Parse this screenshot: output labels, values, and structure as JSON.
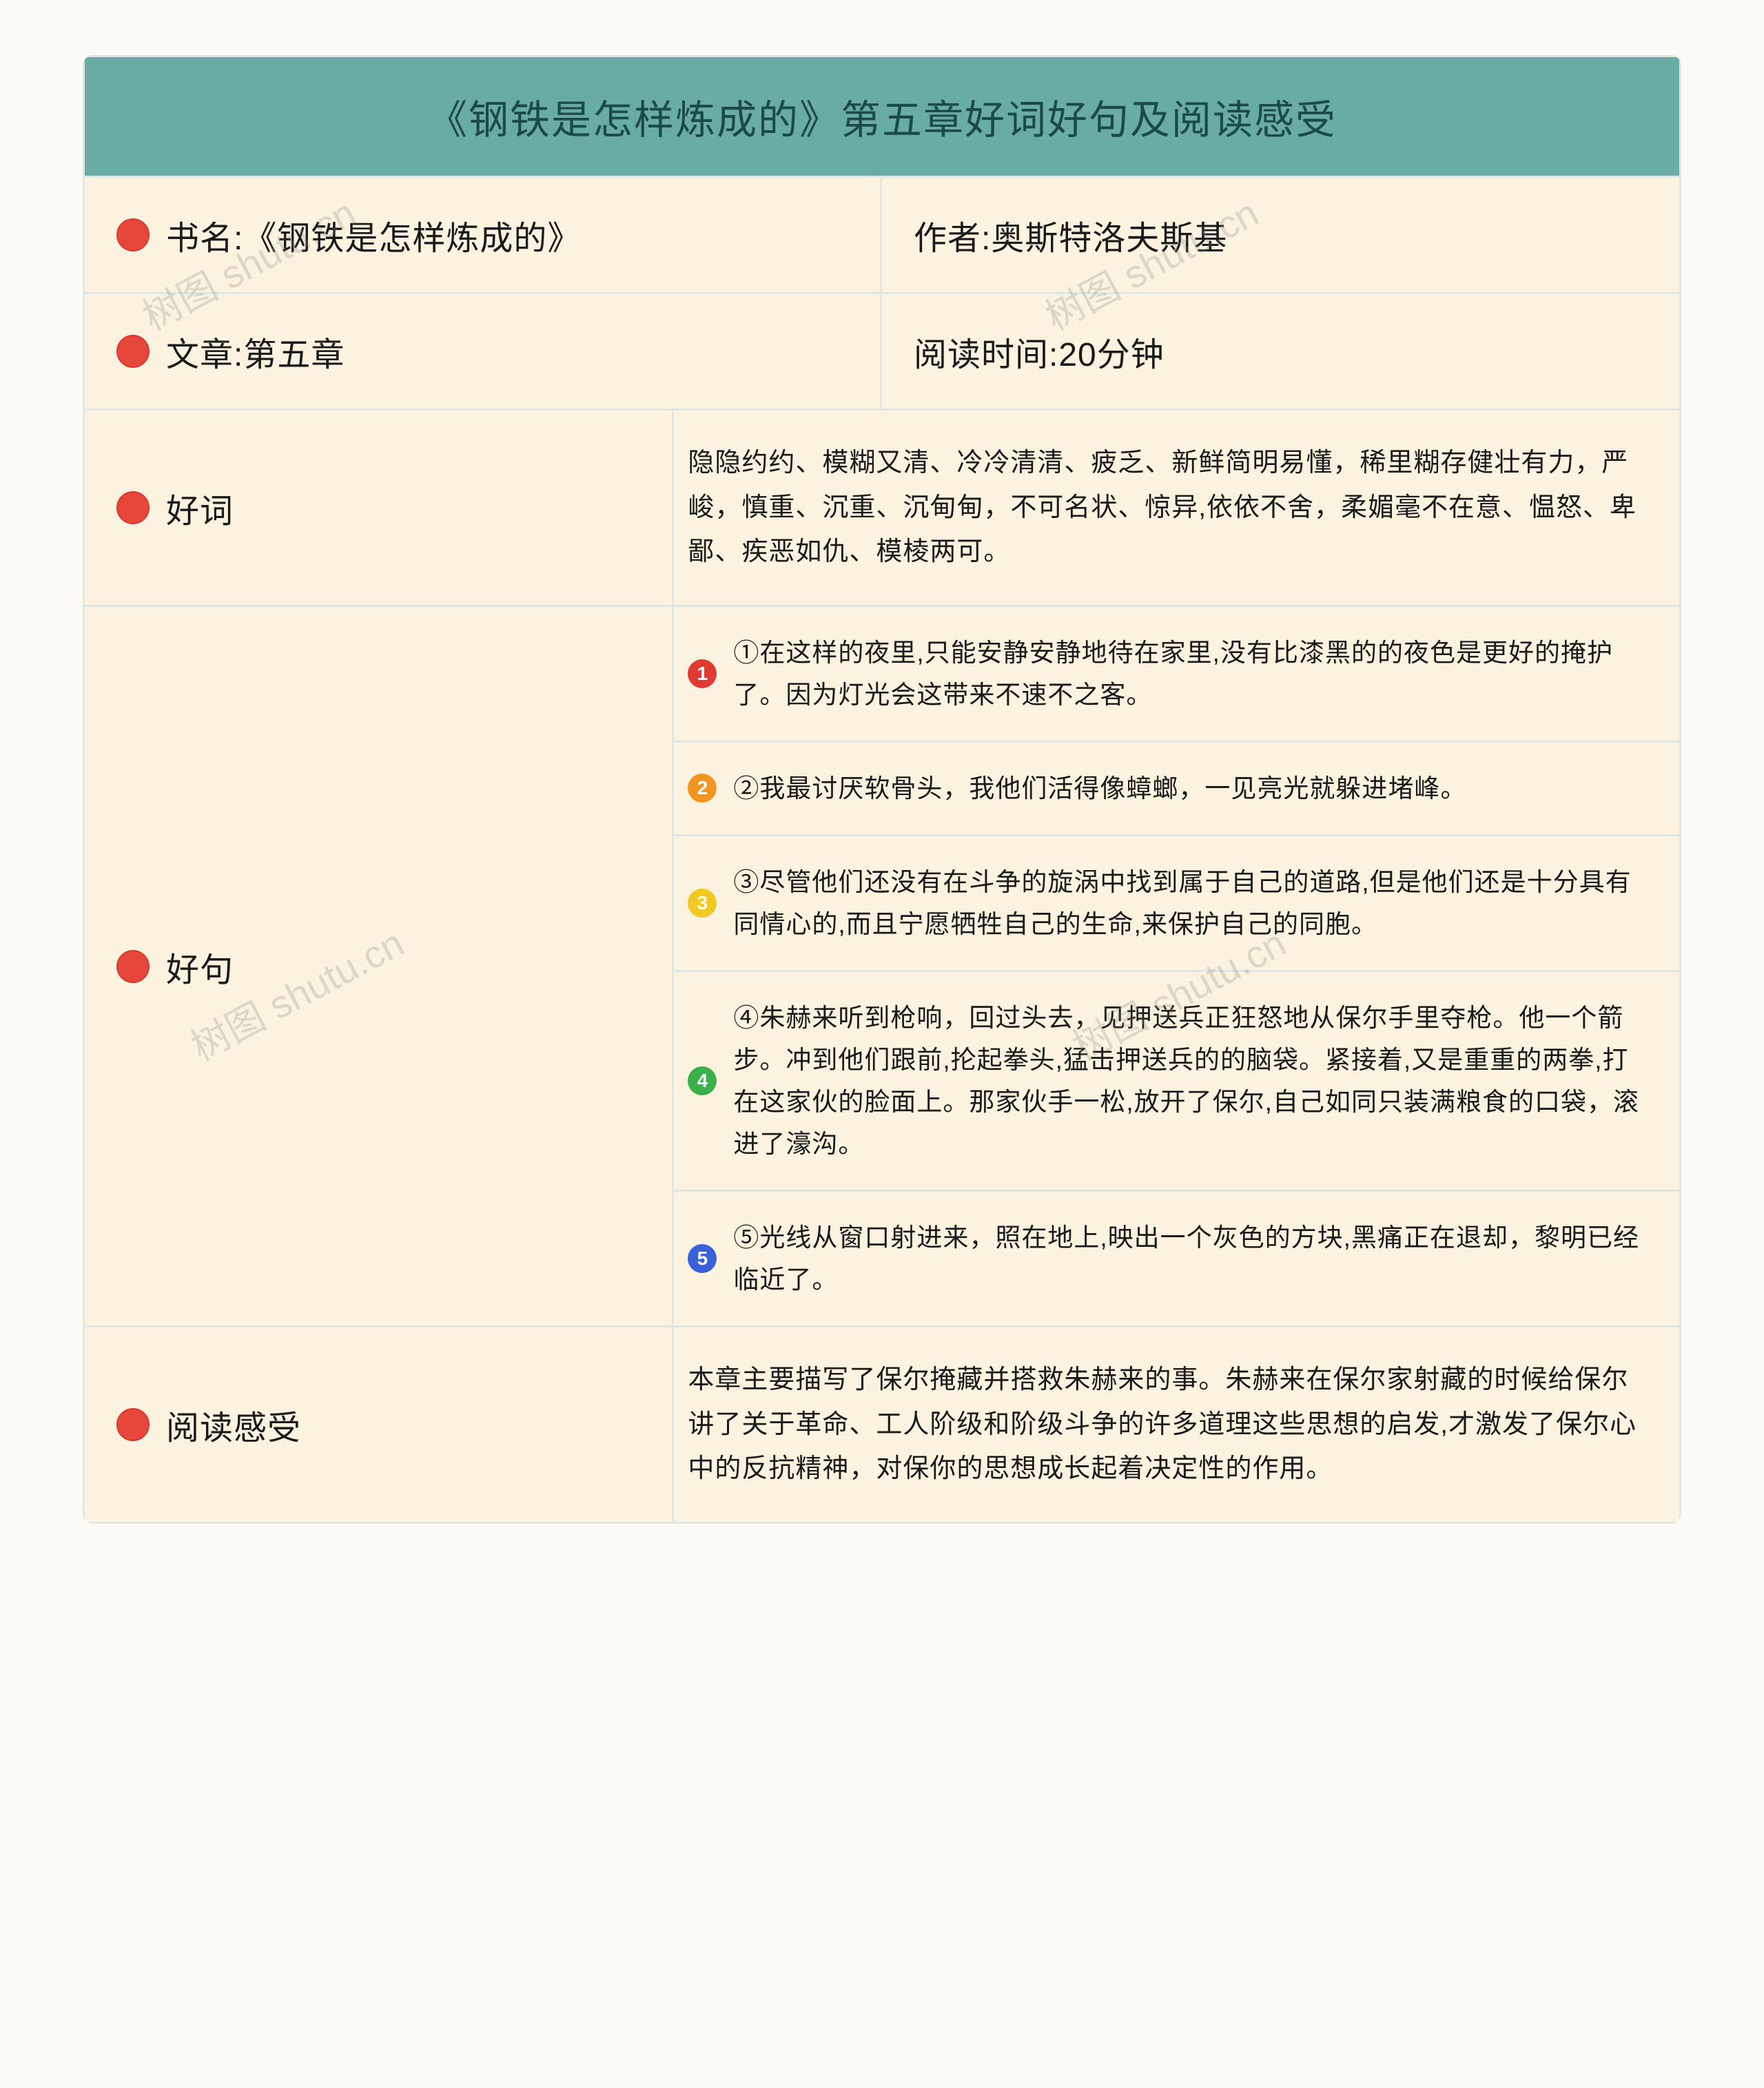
{
  "colors": {
    "header_bg": "#68aca4",
    "header_text": "#1b4a47",
    "cell_bg": "#fbf3df",
    "border": "#dfe6e4",
    "border_width": 3,
    "text": "#1a1a1a",
    "page_bg": "#fcfaf5",
    "dot_fill": "#e7463b",
    "dot_stroke": "#d83a30"
  },
  "title": "《钢铁是怎样炼成的》第五章好词好句及阅读感受",
  "meta": {
    "book_label": "书名:《钢铁是怎样炼成的》",
    "author_label": "作者:奥斯特洛夫斯基",
    "chapter_label": "文章:第五章",
    "time_label": "阅读时间:20分钟"
  },
  "goodwords": {
    "label": "好词",
    "content": "隐隐约约、模糊又清、冷冷清清、疲乏、新鲜简明易懂，稀里糊存健壮有力，严峻，慎重、沉重、沉甸甸，不可名状、惊异,依依不舍，柔媚毫不在意、愠怒、卑鄙、疾恶如仇、模棱两可。"
  },
  "goodsentences": {
    "label": "好句",
    "items": [
      {
        "n": "1",
        "color": "#e03b32",
        "text": "①在这样的夜里,只能安静安静地待在家里,没有比漆黑的的夜色是更好的掩护了。因为灯光会这带来不速不之客。"
      },
      {
        "n": "2",
        "color": "#f29520",
        "text": "②我最讨厌软骨头，我他们活得像蟑螂，一见亮光就躲进堵峰。"
      },
      {
        "n": "3",
        "color": "#f2c924",
        "text": "③尽管他们还没有在斗争的旋涡中找到属于自己的道路,但是他们还是十分具有同情心的,而且宁愿牺牲自己的生命,来保护自己的同胞。"
      },
      {
        "n": "4",
        "color": "#3bb04a",
        "text": "④朱赫来听到枪响，回过头去，见押送兵正狂怒地从保尔手里夺枪。他一个箭步。冲到他们跟前,抡起拳头,猛击押送兵的的脑袋。紧接着,又是重重的两拳,打在这家伙的脸面上。那家伙手一松,放开了保尔,自己如同只装满粮食的口袋，滚进了濠沟。"
      },
      {
        "n": "5",
        "color": "#3a62d8",
        "text": "⑤光线从窗口射进来，照在地上,映出一个灰色的方块,黑痛正在退却，黎明已经临近了。"
      }
    ]
  },
  "reading": {
    "label": "阅读感受",
    "content": "本章主要描写了保尔掩藏并搭救朱赫来的事。朱赫来在保尔家射藏的时候给保尔讲了关于革命、工人阶级和阶级斗争的许多道理这些思想的启发,才激发了保尔心中的反抗精神，对保你的思想成长起着决定性的作用。"
  },
  "watermark_text": "树图 shutu.cn"
}
